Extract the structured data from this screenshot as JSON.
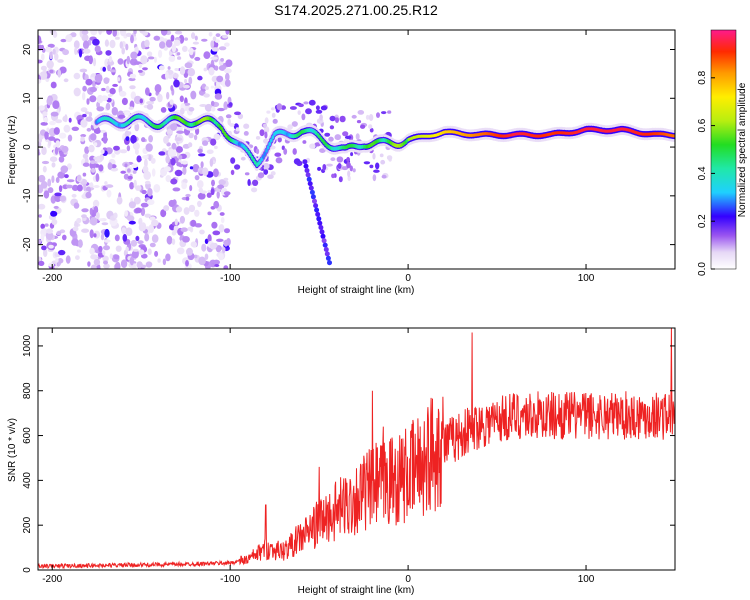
{
  "chart_data": [
    {
      "type": "heatmap",
      "title": "S174.2025.271.00.25.R12",
      "xlabel": "Height of straight line (km)",
      "ylabel": "Frequency (Hz)",
      "xlim": [
        -208,
        150
      ],
      "ylim": [
        -25,
        24
      ],
      "xticks": [
        -200,
        -100,
        0,
        100
      ],
      "xtick_labels": [
        "-200",
        "-100",
        "0",
        "100"
      ],
      "yticks": [
        -20,
        -10,
        0,
        10,
        20
      ],
      "ytick_labels": [
        "-20",
        "-10",
        "0",
        "10",
        "20"
      ],
      "colorbar": {
        "label": "Normalized spectral amplitude",
        "range": [
          0,
          1
        ],
        "ticks": [
          0.0,
          0.2,
          0.4,
          0.6,
          0.8
        ],
        "tick_labels": [
          "0.0",
          "0.2",
          "0.4",
          "0.6",
          "0.8"
        ]
      },
      "ridge": {
        "x": [
          -170,
          -155,
          -140,
          -120,
          -105,
          -95,
          -85,
          -75,
          -60,
          -45,
          -35,
          -25,
          -15,
          0,
          20,
          40,
          60,
          80,
          100,
          120,
          140,
          150
        ],
        "freq": [
          5,
          5.5,
          5,
          5.5,
          4.5,
          0,
          -3,
          2,
          3.5,
          1,
          -1,
          1,
          0.5,
          1.5,
          3,
          2.5,
          2.5,
          2.5,
          3.5,
          3.5,
          2.5,
          2.5
        ],
        "amplitude": [
          0.35,
          0.4,
          0.45,
          0.55,
          0.55,
          0.35,
          0.4,
          0.3,
          0.45,
          0.45,
          0.45,
          0.5,
          0.5,
          0.6,
          0.75,
          0.85,
          0.95,
          0.9,
          0.95,
          0.95,
          0.9,
          0.85
        ]
      }
    },
    {
      "type": "line",
      "xlabel": "Height of straight line (km)",
      "ylabel": "SNR (10 * v/v)",
      "xlim": [
        -208,
        150
      ],
      "ylim": [
        0,
        1080
      ],
      "xticks": [
        -200,
        -100,
        0,
        100
      ],
      "xtick_labels": [
        "-200",
        "-100",
        "0",
        "100"
      ],
      "yticks": [
        0,
        200,
        400,
        600,
        800,
        1000
      ],
      "ytick_labels": [
        "0",
        "200",
        "400",
        "600",
        "800",
        "1000"
      ],
      "series": [
        {
          "name": "SNR",
          "color": "#ee2222",
          "envelope_x": [
            -208,
            -160,
            -120,
            -100,
            -90,
            -80,
            -70,
            -60,
            -50,
            -40,
            -30,
            -20,
            -10,
            0,
            10,
            20,
            40,
            60,
            80,
            100,
            120,
            150
          ],
          "envelope_y": [
            15,
            20,
            25,
            30,
            45,
            90,
            80,
            140,
            200,
            250,
            300,
            350,
            380,
            400,
            470,
            560,
            650,
            690,
            690,
            690,
            690,
            690
          ],
          "peaks_x": [
            -80,
            -50,
            -20,
            -14,
            36,
            148
          ],
          "peaks_y": [
            290,
            460,
            800,
            640,
            1060,
            1080
          ]
        }
      ]
    }
  ]
}
